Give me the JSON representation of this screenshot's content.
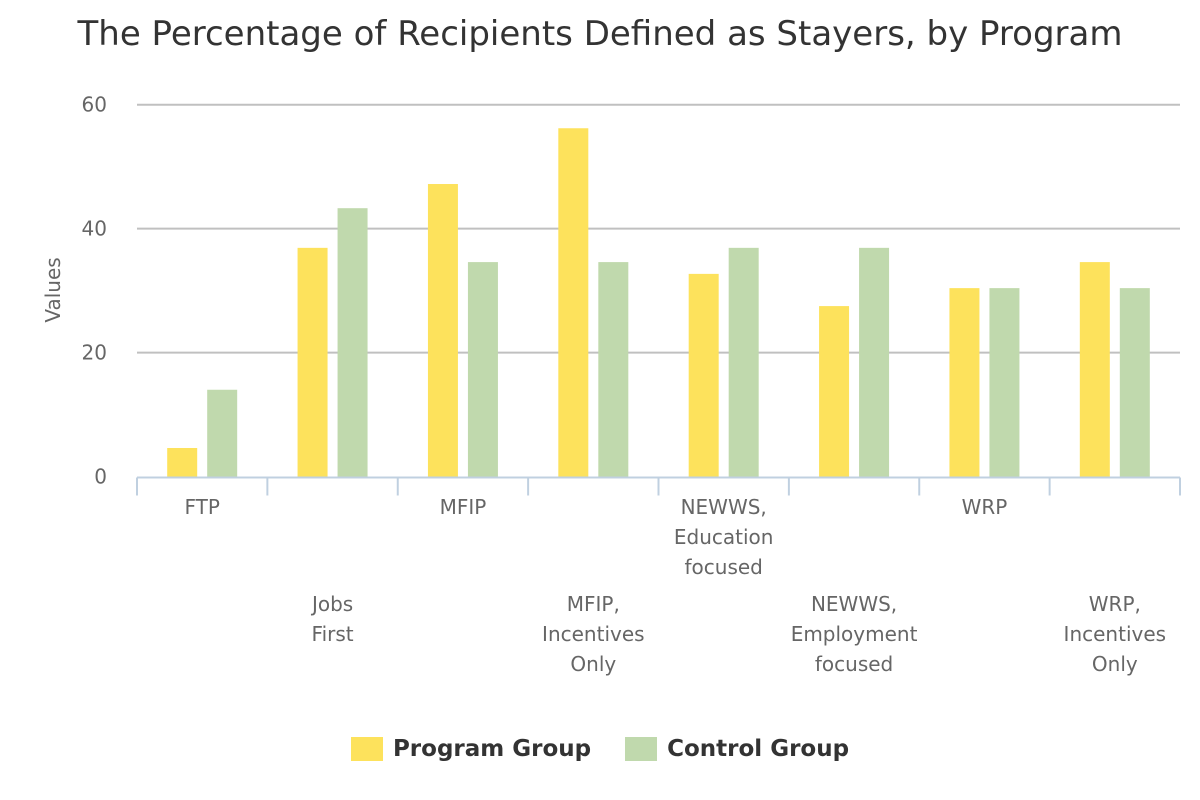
{
  "chart_data": {
    "type": "bar",
    "title": "The Percentage of Recipients Defined as Stayers, by Program",
    "xlabel": "",
    "ylabel": "Values",
    "ylim": [
      0,
      60
    ],
    "yticks": [
      0,
      20,
      40,
      60
    ],
    "grid": true,
    "legend_position": "bottom",
    "categories": [
      [
        "FTP"
      ],
      [
        "Jobs",
        "First"
      ],
      [
        "MFIP"
      ],
      [
        "MFIP,",
        "Incentives",
        "Only"
      ],
      [
        "NEWWS,",
        "Education",
        "focused"
      ],
      [
        "NEWWS,",
        "Employment",
        "focused"
      ],
      [
        "WRP"
      ],
      [
        "WRP,",
        "Incentives",
        "Only"
      ]
    ],
    "series": [
      {
        "name": "Program Group",
        "color": "#fde25c",
        "values": [
          4.6,
          36.9,
          47.2,
          56.2,
          32.7,
          27.5,
          30.4,
          34.6
        ]
      },
      {
        "name": "Control Group",
        "color": "#c0d9ad",
        "values": [
          14.0,
          43.3,
          34.6,
          34.6,
          36.9,
          36.9,
          30.4,
          30.4
        ]
      }
    ]
  }
}
